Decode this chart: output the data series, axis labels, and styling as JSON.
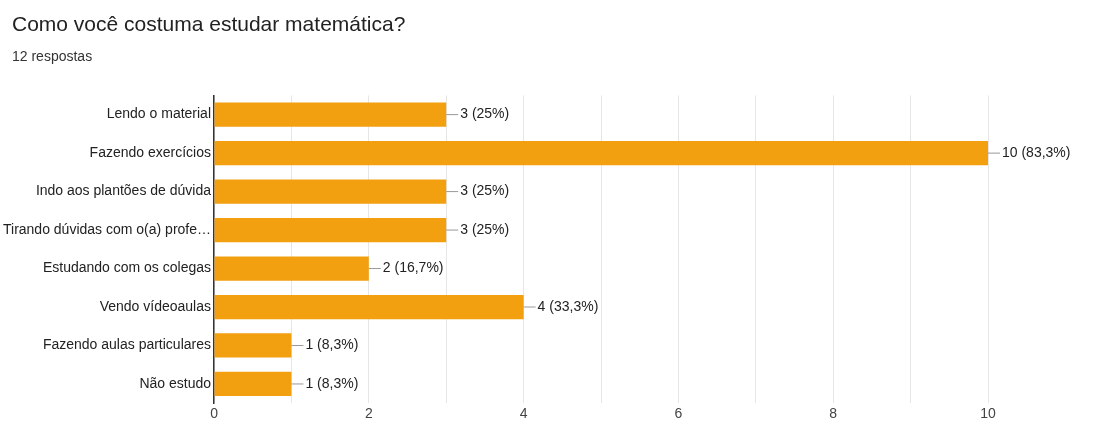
{
  "chart_data": {
    "type": "bar",
    "orientation": "horizontal",
    "title": "Como você costuma estudar matemática?",
    "subtitle": "12 respostas",
    "categories": [
      "Lendo o material",
      "Fazendo exercícios",
      "Indo aos plantões de dúvida",
      "Tirando dúvidas com o(a) profe…",
      "Estudando com os colegas",
      "Vendo vídeoaulas",
      "Fazendo aulas particulares",
      "Não estudo"
    ],
    "values": [
      3,
      10,
      3,
      3,
      2,
      4,
      1,
      1
    ],
    "value_labels": [
      "3 (25%)",
      "10 (83,3%)",
      "3 (25%)",
      "3 (25%)",
      "2 (16,7%)",
      "4 (33,3%)",
      "1 (8,3%)",
      "1 (8,3%)"
    ],
    "color": "#f29f10",
    "xlim": [
      0,
      10
    ],
    "xticks": [
      0,
      {
        "value": 1,
        "label": null
      },
      2,
      {
        "value": 3,
        "label": null
      },
      4,
      {
        "value": 5,
        "label": null
      },
      6,
      {
        "value": 7,
        "label": null
      },
      8,
      {
        "value": 9,
        "label": null
      },
      10
    ],
    "grid": "x",
    "legend": false
  }
}
